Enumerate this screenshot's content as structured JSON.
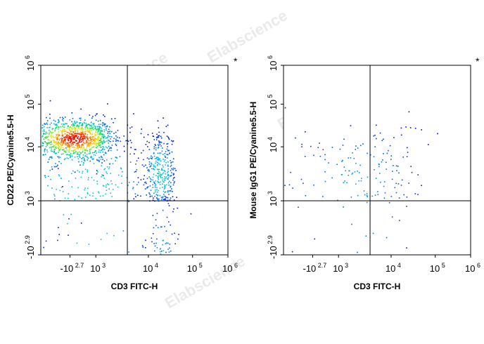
{
  "watermark_text": "Elabscience",
  "chart_data": [
    {
      "type": "scatter",
      "subtype": "flow-cytometry-density-plot",
      "marker": "*",
      "xlabel": "CD3 FITC-H",
      "ylabel": "CD22 PE/Cyanine5.5-H",
      "x_ticks": [
        {
          "base": "-10",
          "exp": "2.7"
        },
        {
          "base": "10",
          "exp": "3"
        },
        {
          "base": "10",
          "exp": "4"
        },
        {
          "base": "10",
          "exp": "5"
        },
        {
          "base": "10",
          "exp": "6"
        }
      ],
      "y_ticks": [
        {
          "base": "-10",
          "exp": "2.9"
        },
        {
          "base": "10",
          "exp": "3"
        },
        {
          "base": "10",
          "exp": "4"
        },
        {
          "base": "10",
          "exp": "5"
        },
        {
          "base": "10",
          "exp": "6"
        }
      ],
      "xlim_log": [
        -2.7,
        6
      ],
      "ylim_log": [
        -2.9,
        6
      ],
      "gate_x": 3.6,
      "gate_y": 3.0,
      "populations": [
        {
          "cx": 2.75,
          "cy": 4.2,
          "sx": 0.28,
          "sy": 0.24,
          "weight": 1100
        },
        {
          "cx": 2.5,
          "cy": 2.65,
          "sx": 0.3,
          "sy": 0.12,
          "weight": 450
        },
        {
          "cx": 4.3,
          "cy": 2.65,
          "sx": 0.18,
          "sy": 0.15,
          "weight": 1300
        },
        {
          "cx": 4.25,
          "cy": 3.5,
          "sx": 0.2,
          "sy": 0.4,
          "weight": 350
        },
        {
          "cx": 3.0,
          "cy": 3.3,
          "sx": 0.6,
          "sy": 0.6,
          "weight": 350
        }
      ]
    },
    {
      "type": "scatter",
      "subtype": "flow-cytometry-density-plot",
      "marker": "*",
      "xlabel": "CD3 FITC-H",
      "ylabel": "Mouse IgG1 PE/Cyanine5.5-H",
      "x_ticks": [
        {
          "base": "-10",
          "exp": "2.7"
        },
        {
          "base": "10",
          "exp": "3"
        },
        {
          "base": "10",
          "exp": "4"
        },
        {
          "base": "10",
          "exp": "5"
        },
        {
          "base": "10",
          "exp": "6"
        }
      ],
      "y_ticks": [
        {
          "base": "-10",
          "exp": "2.9"
        },
        {
          "base": "10",
          "exp": "3"
        },
        {
          "base": "10",
          "exp": "4"
        },
        {
          "base": "10",
          "exp": "5"
        },
        {
          "base": "10",
          "exp": "6"
        }
      ],
      "xlim_log": [
        -2.7,
        6
      ],
      "ylim_log": [
        -2.9,
        6
      ],
      "gate_x": 3.6,
      "gate_y": 3.0,
      "populations": [
        {
          "cx": 2.5,
          "cy": 2.6,
          "sx": 0.3,
          "sy": 0.1,
          "weight": 1200
        },
        {
          "cx": 4.3,
          "cy": 2.62,
          "sx": 0.2,
          "sy": 0.1,
          "weight": 1000
        },
        {
          "cx": 3.4,
          "cy": 3.4,
          "sx": 0.7,
          "sy": 0.6,
          "weight": 220
        }
      ]
    }
  ]
}
